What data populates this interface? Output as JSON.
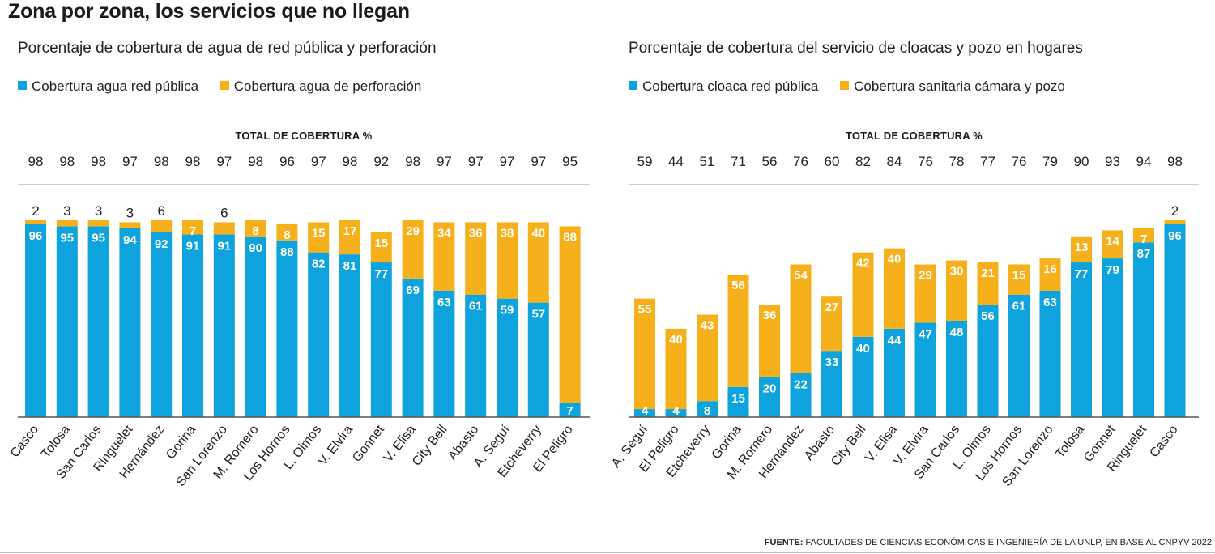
{
  "title": "Zona por zona, los servicios que no llegan",
  "colors": {
    "blue": "#0ea3dc",
    "orange": "#f6b01c",
    "axis": "#555555"
  },
  "footer": {
    "label": "FUENTE:",
    "text": " FACULTADES DE CIENCIAS ECONÓMICAS E INGENIERÍA DE LA UNLP, EN BASE AL CNPYV 2022"
  },
  "chart_data": [
    {
      "type": "bar",
      "stacked": true,
      "title": "Porcentaje de cobertura de agua de red pública y perforación",
      "totals_label": "TOTAL DE COBERTURA %",
      "categories": [
        "Casco",
        "Tolosa",
        "San Carlos",
        "Ringuelet",
        "Hernández",
        "Gorina",
        "San Lorenzo",
        "M. Romero",
        "Los Hornos",
        "L. Olmos",
        "V. Elvira",
        "Gonnet",
        "V. Elisa",
        "City Bell",
        "Abasto",
        "A. Seguí",
        "Etcheverry",
        "El Peligro"
      ],
      "totals": [
        98,
        98,
        98,
        97,
        98,
        98,
        97,
        98,
        96,
        97,
        98,
        92,
        98,
        97,
        97,
        97,
        97,
        95
      ],
      "series": [
        {
          "name": "Cobertura agua red pública",
          "values": [
            96,
            95,
            95,
            94,
            92,
            91,
            91,
            90,
            88,
            82,
            81,
            77,
            69,
            63,
            61,
            59,
            57,
            7
          ]
        },
        {
          "name": "Cobertura agua de perforación",
          "values": [
            2,
            3,
            3,
            3,
            6,
            7,
            6,
            8,
            8,
            15,
            17,
            15,
            29,
            34,
            36,
            38,
            40,
            88
          ]
        }
      ],
      "ylim": [
        0,
        100
      ]
    },
    {
      "type": "bar",
      "stacked": true,
      "title": "Porcentaje de cobertura del servicio de cloacas y pozo en hogares",
      "totals_label": "TOTAL DE COBERTURA %",
      "categories": [
        "A. Seguí",
        "El Peligro",
        "Etcheverry",
        "Gorina",
        "M. Romero",
        "Hernández",
        "Abasto",
        "City Bell",
        "V. Elisa",
        "V. Elvira",
        "San Carlos",
        "L. Olmos",
        "Los Hornos",
        "San Lorenzo",
        "Tolosa",
        "Gonnet",
        "Ringuelet",
        "Casco"
      ],
      "totals": [
        59,
        44,
        51,
        71,
        56,
        76,
        60,
        82,
        84,
        76,
        78,
        77,
        76,
        79,
        90,
        93,
        94,
        98
      ],
      "series": [
        {
          "name": "Cobertura cloaca red pública",
          "values": [
            4,
            4,
            8,
            15,
            20,
            22,
            33,
            40,
            44,
            47,
            48,
            56,
            61,
            63,
            77,
            79,
            87,
            96
          ]
        },
        {
          "name": "Cobertura sanitaria cámara y pozo",
          "values": [
            55,
            40,
            43,
            56,
            36,
            54,
            27,
            42,
            40,
            29,
            30,
            21,
            15,
            16,
            13,
            14,
            7,
            2
          ]
        }
      ],
      "ylim": [
        0,
        100
      ]
    }
  ]
}
